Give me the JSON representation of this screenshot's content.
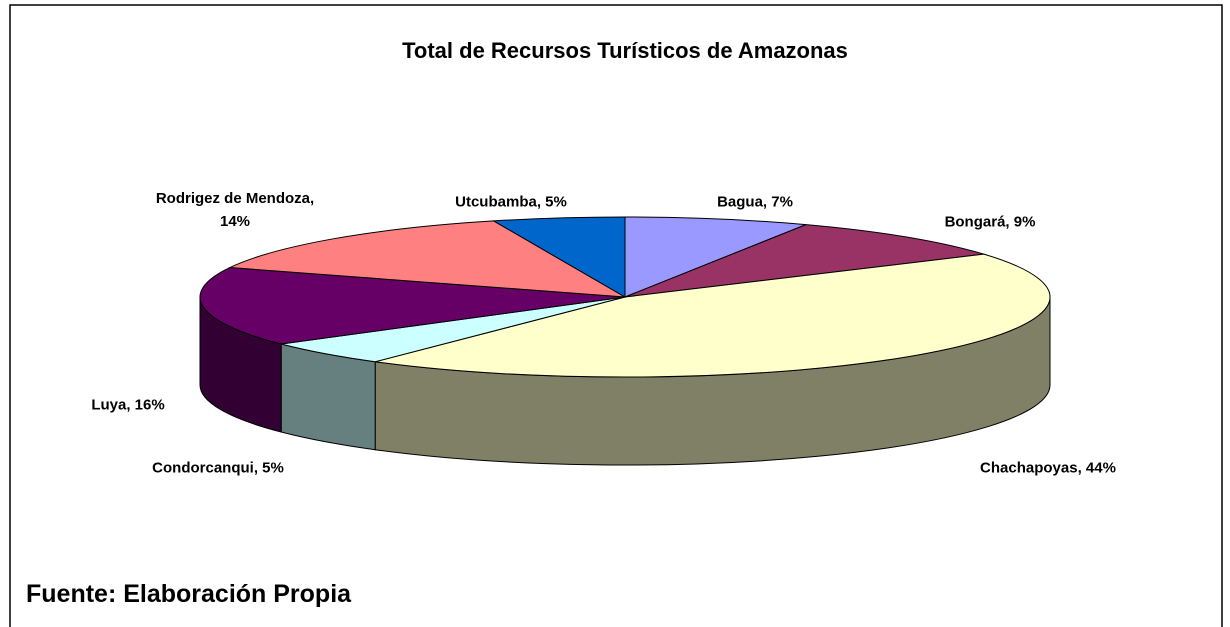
{
  "chart_data": {
    "type": "pie",
    "title": "Total de Recursos Turísticos de Amazonas",
    "values": [
      7,
      9,
      44,
      5,
      16,
      14,
      5
    ],
    "value_labels": [
      "Bagua, 7%",
      "Bongará, 9%",
      "Chachapoyas, 44%",
      "Condorcanqui, 5%",
      "Luya, 16%",
      "Rodrigez de Mendoza, 14%",
      "Utcubamba, 5%"
    ],
    "colors": [
      "#9999ff",
      "#993366",
      "#ffffcc",
      "#ccffff",
      "#660066",
      "#ff8080",
      "#0066cc"
    ],
    "three_d": true,
    "source": "Fuente: Elaboración Propia"
  }
}
